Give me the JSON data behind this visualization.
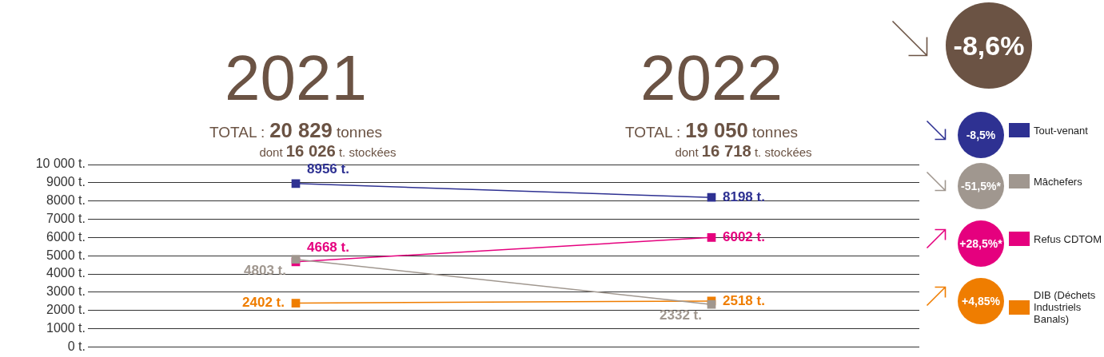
{
  "chart_data": {
    "type": "line",
    "categories": [
      "2021",
      "2022"
    ],
    "series": [
      {
        "name": "Tout-venant",
        "color": "#2e3192",
        "values": [
          8956,
          8198
        ],
        "value_labels": [
          "8956 t.",
          "8198 t."
        ]
      },
      {
        "name": "Mâchefers",
        "color": "#a0978f",
        "values": [
          4803,
          2332
        ],
        "value_labels": [
          "4803 t.",
          "2332 t."
        ]
      },
      {
        "name": "Refus CDTOM",
        "color": "#e5007e",
        "values": [
          4668,
          6002
        ],
        "value_labels": [
          "4668 t.",
          "6002 t."
        ]
      },
      {
        "name": "DIB (Déchets Industriels Banals)",
        "color": "#ef7d00",
        "values": [
          2402,
          2518
        ],
        "value_labels": [
          "2402 t.",
          "2518 t."
        ]
      }
    ],
    "ylim": [
      0,
      10000
    ],
    "yticks": [
      {
        "value": 0,
        "label": "0 t."
      },
      {
        "value": 1000,
        "label": "1000 t."
      },
      {
        "value": 2000,
        "label": "2000 t."
      },
      {
        "value": 3000,
        "label": "3000 t."
      },
      {
        "value": 4000,
        "label": "4000 t."
      },
      {
        "value": 5000,
        "label": "5000 t."
      },
      {
        "value": 6000,
        "label": "6000 t."
      },
      {
        "value": 7000,
        "label": "7000 t."
      },
      {
        "value": 8000,
        "label": "8000 t."
      },
      {
        "value": 9000,
        "label": "9000 t."
      },
      {
        "value": 10000,
        "label": "10 000 t."
      }
    ],
    "grid": "y",
    "legend": "right",
    "marker": "square",
    "line_style": "solid",
    "annotations": [
      "TOTAL : 20 829 tonnes",
      "dont 16 026 t. stockées",
      "TOTAL : 19 050 tonnes",
      "dont 16 718 t. stockées",
      "-8,6%",
      "-8,5%",
      "-51,5%*",
      "+28,5%*",
      "+4,85%"
    ]
  }
}
